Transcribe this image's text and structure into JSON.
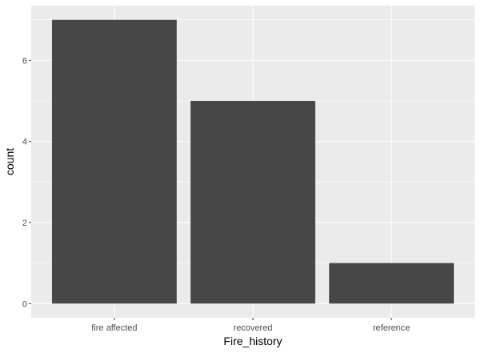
{
  "chart_data": {
    "type": "bar",
    "categories": [
      "fire affected",
      "recovered",
      "reference"
    ],
    "values": [
      7,
      5,
      1
    ],
    "xlabel": "Fire_history",
    "ylabel": "count",
    "ylim": [
      -0.35,
      7.35
    ],
    "yticks": [
      0,
      2,
      4,
      6
    ],
    "grid": true,
    "colors": {
      "panel": "#ebebeb",
      "grid_major": "#ffffff",
      "bar": "#474747",
      "tick_text": "#4d4d4d",
      "tick_mark": "#333333"
    }
  }
}
